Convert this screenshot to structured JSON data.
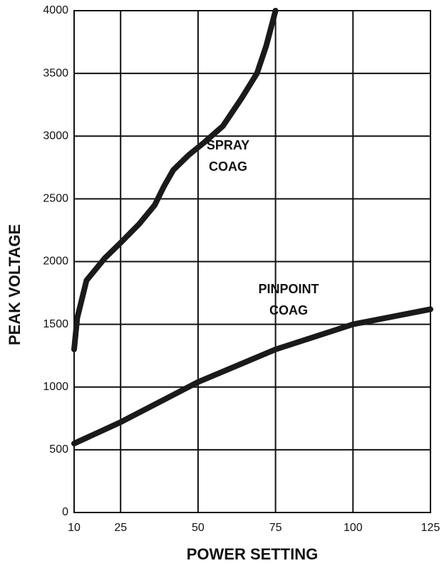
{
  "chart_data": {
    "type": "line",
    "x_label": "POWER SETTING",
    "y_label": "PEAK VOLTAGE",
    "xlim": [
      10,
      125
    ],
    "xticks": [
      10,
      25,
      50,
      75,
      100,
      125
    ],
    "ylim": [
      0,
      4000
    ],
    "yticks": [
      0,
      500,
      1000,
      1500,
      2000,
      2500,
      3000,
      3500,
      4000
    ],
    "grid": true,
    "series": [
      {
        "name": "SPRAY COAG",
        "color": "#1a1a1a",
        "x": [
          10,
          11,
          14,
          20,
          25,
          31,
          36,
          39,
          42,
          47,
          52,
          58,
          64,
          69,
          72,
          75
        ],
        "values": [
          1300,
          1550,
          1850,
          2030,
          2150,
          2300,
          2450,
          2600,
          2730,
          2850,
          2950,
          3080,
          3300,
          3500,
          3720,
          4000
        ]
      },
      {
        "name": "PINPOINT COAG",
        "color": "#1a1a1a",
        "x": [
          10,
          25,
          50,
          75,
          100,
          125
        ],
        "values": [
          550,
          720,
          1040,
          1300,
          1500,
          1620
        ]
      }
    ],
    "annotations": [
      {
        "lines": [
          "SPRAY",
          "COAG"
        ]
      },
      {
        "lines": [
          "PINPOINT",
          "COAG"
        ]
      }
    ]
  }
}
